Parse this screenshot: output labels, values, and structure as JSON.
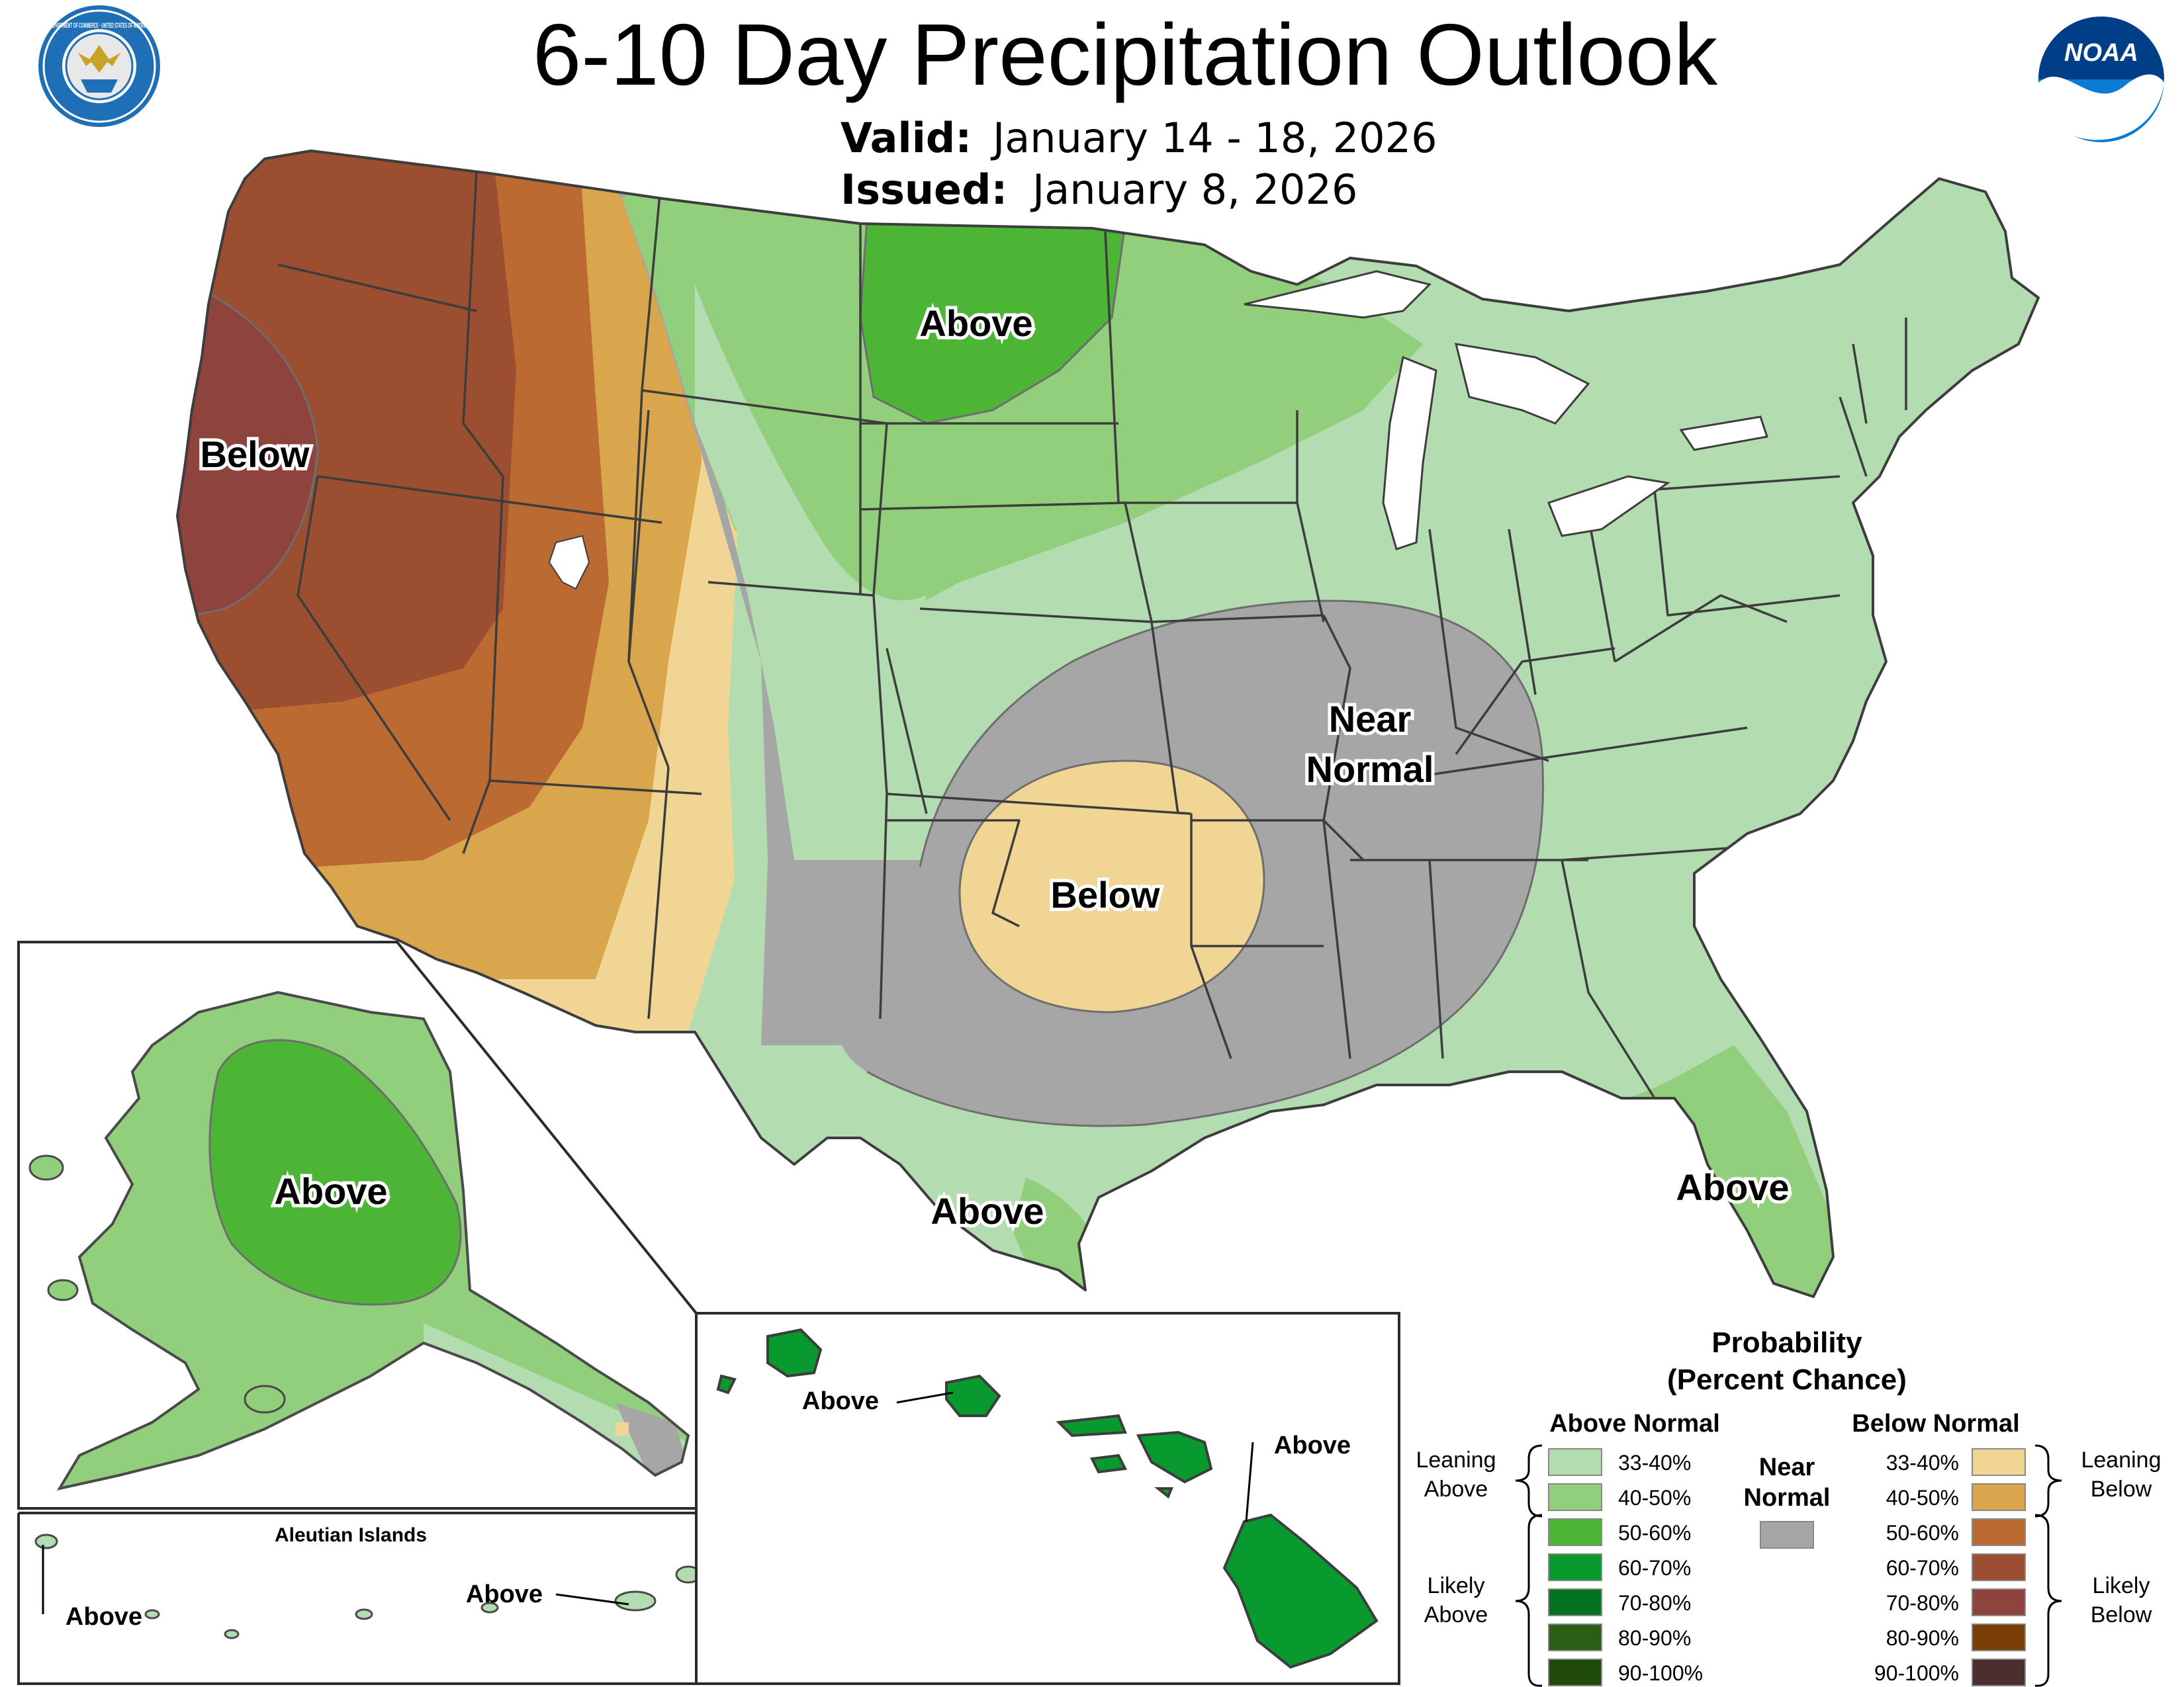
{
  "header": {
    "title": "6-10 Day Precipitation Outlook",
    "valid_label": "Valid:",
    "valid_value": "January 14 - 18, 2026",
    "issued_label": "Issued:",
    "issued_value": "January 8, 2026"
  },
  "logos": {
    "commerce_seal_text": "DEPARTMENT OF COMMERCE · UNITED STATES OF AMERICA",
    "noaa_text": "NOAA"
  },
  "map_labels": {
    "west_below": "Below",
    "north_above": "Above",
    "central_near_normal_1": "Near",
    "central_near_normal_2": "Normal",
    "southern_plains_below": "Below",
    "texas_above": "Above",
    "florida_above": "Above"
  },
  "alaska": {
    "label": "Above",
    "aleutian_title": "Aleutian Islands",
    "aleutian_west_label": "Above",
    "aleutian_east_label": "Above"
  },
  "hawaii": {
    "west_label": "Above",
    "east_label": "Above"
  },
  "legend": {
    "title_1": "Probability",
    "title_2": "(Percent Chance)",
    "above_header": "Above Normal",
    "below_header": "Below Normal",
    "near_header_1": "Near",
    "near_header_2": "Normal",
    "leaning_above_1": "Leaning",
    "leaning_above_2": "Above",
    "likely_above_1": "Likely",
    "likely_above_2": "Above",
    "leaning_below_1": "Leaning",
    "leaning_below_2": "Below",
    "likely_below_1": "Likely",
    "likely_below_2": "Below",
    "above_items": [
      {
        "range": "33-40%",
        "color": "#b3dcb0"
      },
      {
        "range": "40-50%",
        "color": "#91cf7d"
      },
      {
        "range": "50-60%",
        "color": "#4cb536"
      },
      {
        "range": "60-70%",
        "color": "#089a2e"
      },
      {
        "range": "70-80%",
        "color": "#037322"
      },
      {
        "range": "80-90%",
        "color": "#2a5e15"
      },
      {
        "range": "90-100%",
        "color": "#1f4a0a"
      }
    ],
    "below_items": [
      {
        "range": "33-40%",
        "color": "#f0d594"
      },
      {
        "range": "40-50%",
        "color": "#d9a64d"
      },
      {
        "range": "50-60%",
        "color": "#bb6a32"
      },
      {
        "range": "60-70%",
        "color": "#9b4e30"
      },
      {
        "range": "70-80%",
        "color": "#8e433c"
      },
      {
        "range": "80-90%",
        "color": "#7a3f08"
      },
      {
        "range": "90-100%",
        "color": "#4b2f2f"
      }
    ],
    "near_color": "#a6a6a6"
  }
}
